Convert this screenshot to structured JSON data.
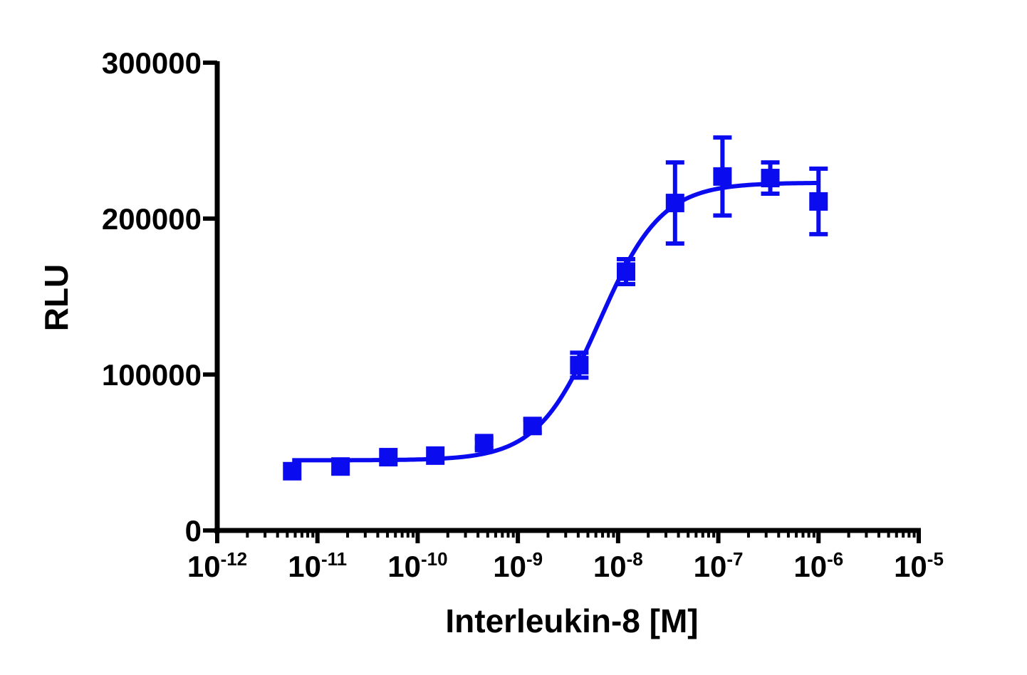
{
  "chart_data": {
    "type": "scatter",
    "title": "",
    "xlabel": "Interleukin-8 [M]",
    "ylabel": "RLU",
    "x_scale": "log10",
    "xlim": [
      1e-12,
      1e-05
    ],
    "ylim": [
      0,
      300000
    ],
    "x_ticks": [
      {
        "base": "10",
        "exp": "-12"
      },
      {
        "base": "10",
        "exp": "-11"
      },
      {
        "base": "10",
        "exp": "-10"
      },
      {
        "base": "10",
        "exp": "-9"
      },
      {
        "base": "10",
        "exp": "-8"
      },
      {
        "base": "10",
        "exp": "-7"
      },
      {
        "base": "10",
        "exp": "-6"
      },
      {
        "base": "10",
        "exp": "-5"
      }
    ],
    "y_ticks": [
      "0",
      "100000",
      "200000",
      "300000"
    ],
    "grid": false,
    "legend": "none",
    "series": [
      {
        "marker": "square",
        "color": "#0b0bf0",
        "points": [
          {
            "x": 5.6e-12,
            "y": 38000,
            "err": 0
          },
          {
            "x": 1.7e-11,
            "y": 41000,
            "err": 0
          },
          {
            "x": 5.1e-11,
            "y": 47000,
            "err": 0
          },
          {
            "x": 1.5e-10,
            "y": 48000,
            "err": 0
          },
          {
            "x": 4.6e-10,
            "y": 56000,
            "err": 3000
          },
          {
            "x": 1.4e-09,
            "y": 67000,
            "err": 4000
          },
          {
            "x": 4.1e-09,
            "y": 106000,
            "err": 8000
          },
          {
            "x": 1.2e-08,
            "y": 166000,
            "err": 8000
          },
          {
            "x": 3.7e-08,
            "y": 210000,
            "err": 26000
          },
          {
            "x": 1.1e-07,
            "y": 227000,
            "err": 25000
          },
          {
            "x": 3.3e-07,
            "y": 226000,
            "err": 10000
          },
          {
            "x": 1e-06,
            "y": 211000,
            "err": 21000
          }
        ],
        "fit": {
          "model": "four-parameter logistic",
          "bottom": 45000,
          "top": 223000,
          "ec50": 6.5e-09,
          "hill": 1.4,
          "x_range": [
            5.6e-12,
            1e-06
          ]
        }
      }
    ]
  }
}
